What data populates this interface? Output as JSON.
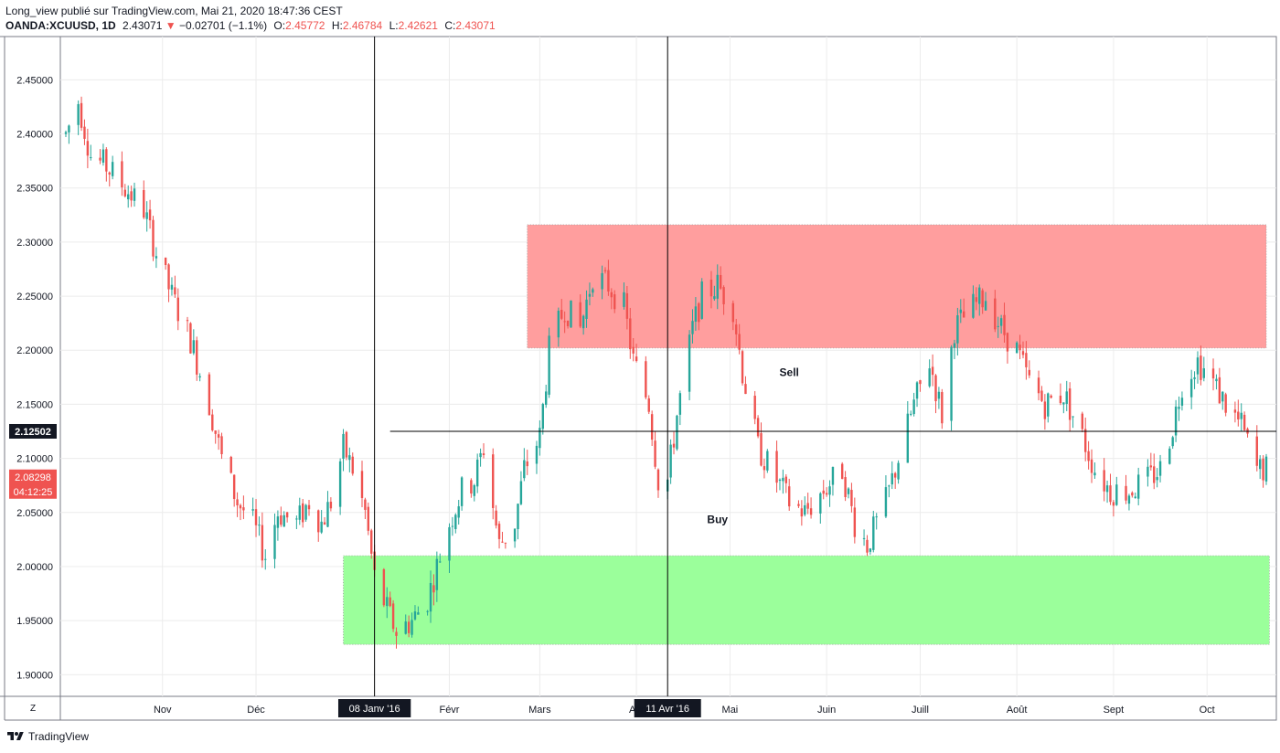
{
  "header": {
    "publisher_line": "Long_view publié sur TradingView.com, Mai 21, 2020 18:47:36 CEST",
    "symbol": "OANDA:XCUUSD, 1D",
    "last": "2.43071",
    "change_arrow": "▼",
    "change": "−0.02701 (−1.1%)",
    "o_label": "O:",
    "o_value": "2.45772",
    "h_label": "H:",
    "h_value": "2.46784",
    "l_label": "L:",
    "l_value": "2.42621",
    "c_label": "C:",
    "c_value": "2.43071"
  },
  "footer": {
    "brand": "TradingView"
  },
  "colors": {
    "up": "#26a69a",
    "down": "#ef5350",
    "sell_zone": "#ff9e9e",
    "buy_zone": "#9bff9b",
    "axis_text": "#131722"
  },
  "chart_data": {
    "type": "candlestick",
    "title": "",
    "xlabel": "",
    "ylabel": "",
    "ylim": [
      1.88,
      2.49
    ],
    "y_ticks": [
      "1.90000",
      "1.95000",
      "2.00000",
      "2.05000",
      "2.10000",
      "2.15000",
      "2.20000",
      "2.25000",
      "2.30000",
      "2.35000",
      "2.40000",
      "2.45000"
    ],
    "x_ticks": [
      "Nov",
      "Déc",
      "Févr",
      "Mars",
      "Avr",
      "Mai",
      "Juin",
      "Juill",
      "Août",
      "Sept",
      "Oct"
    ],
    "x_tick_dates": [
      "2015-11-01",
      "2015-12-01",
      "2016-02-01",
      "2016-03-01",
      "2016-04-01",
      "2016-05-01",
      "2016-06-01",
      "2016-07-01",
      "2016-08-01",
      "2016-09-01",
      "2016-10-01"
    ],
    "date_range": [
      "2015-10-01",
      "2016-10-20"
    ],
    "price_labels": [
      {
        "text": "2.12502",
        "value": 2.12502,
        "style": "dark"
      },
      {
        "text": "2.08298",
        "value": 2.08298,
        "style": "red"
      },
      {
        "text": "04:12:25",
        "style": "red"
      }
    ],
    "vertical_markers": [
      {
        "label": "08 Janv '16",
        "date": "2016-01-08"
      },
      {
        "label": "11 Avr '16",
        "date": "2016-04-11"
      }
    ],
    "horizontal_line": {
      "value": 2.125,
      "start_date": "2016-01-13"
    },
    "zones": [
      {
        "label": "Sell",
        "start": "2016-02-26",
        "end": "2016-10-20",
        "top": 2.316,
        "bottom": 2.202,
        "color": "#ff9e9e",
        "label_date": "2016-05-20",
        "label_value": 2.176
      },
      {
        "label": "Buy",
        "start": "2015-12-29",
        "end": "2016-10-21",
        "top": 2.01,
        "bottom": 1.928,
        "color": "#9bff9b",
        "label_date": "2016-04-27",
        "label_value": 2.04
      }
    ],
    "path": [
      [
        "2015-10-01",
        2.4
      ],
      [
        "2015-10-05",
        2.43
      ],
      [
        "2015-10-09",
        2.38
      ],
      [
        "2015-10-14",
        2.37
      ],
      [
        "2015-10-20",
        2.35
      ],
      [
        "2015-10-26",
        2.33
      ],
      [
        "2015-10-30",
        2.29
      ],
      [
        "2015-11-04",
        2.25
      ],
      [
        "2015-11-10",
        2.21
      ],
      [
        "2015-11-16",
        2.15
      ],
      [
        "2015-11-20",
        2.1
      ],
      [
        "2015-11-25",
        2.06
      ],
      [
        "2015-11-30",
        2.04
      ],
      [
        "2015-12-04",
        2.01
      ],
      [
        "2015-12-08",
        2.05
      ],
      [
        "2015-12-14",
        2.04
      ],
      [
        "2015-12-18",
        2.06
      ],
      [
        "2015-12-22",
        2.04
      ],
      [
        "2015-12-25",
        2.06
      ],
      [
        "2015-12-29",
        2.11
      ],
      [
        "2016-01-01",
        2.09
      ],
      [
        "2016-01-05",
        2.05
      ],
      [
        "2016-01-08",
        1.99
      ],
      [
        "2016-01-12",
        1.96
      ],
      [
        "2016-01-15",
        1.94
      ],
      [
        "2016-01-20",
        1.95
      ],
      [
        "2016-01-25",
        1.97
      ],
      [
        "2016-01-28",
        2.0
      ],
      [
        "2016-02-01",
        2.04
      ],
      [
        "2016-02-05",
        2.07
      ],
      [
        "2016-02-09",
        2.08
      ],
      [
        "2016-02-12",
        2.11
      ],
      [
        "2016-02-17",
        2.02
      ],
      [
        "2016-02-22",
        2.04
      ],
      [
        "2016-02-25",
        2.09
      ],
      [
        "2016-03-01",
        2.12
      ],
      [
        "2016-03-04",
        2.2
      ],
      [
        "2016-03-09",
        2.24
      ],
      [
        "2016-03-14",
        2.22
      ],
      [
        "2016-03-18",
        2.27
      ],
      [
        "2016-03-23",
        2.26
      ],
      [
        "2016-03-28",
        2.24
      ],
      [
        "2016-03-31",
        2.19
      ],
      [
        "2016-04-05",
        2.15
      ],
      [
        "2016-04-08",
        2.08
      ],
      [
        "2016-04-11",
        2.08
      ],
      [
        "2016-04-14",
        2.14
      ],
      [
        "2016-04-19",
        2.22
      ],
      [
        "2016-04-22",
        2.25
      ],
      [
        "2016-04-27",
        2.26
      ],
      [
        "2016-05-02",
        2.24
      ],
      [
        "2016-05-05",
        2.18
      ],
      [
        "2016-05-10",
        2.11
      ],
      [
        "2016-05-16",
        2.08
      ],
      [
        "2016-05-20",
        2.06
      ],
      [
        "2016-05-25",
        2.05
      ],
      [
        "2016-05-31",
        2.07
      ],
      [
        "2016-06-06",
        2.09
      ],
      [
        "2016-06-10",
        2.04
      ],
      [
        "2016-06-14",
        2.02
      ],
      [
        "2016-06-20",
        2.06
      ],
      [
        "2016-06-24",
        2.1
      ],
      [
        "2016-06-29",
        2.15
      ],
      [
        "2016-07-04",
        2.19
      ],
      [
        "2016-07-08",
        2.14
      ],
      [
        "2016-07-12",
        2.22
      ],
      [
        "2016-07-18",
        2.24
      ],
      [
        "2016-07-22",
        2.25
      ],
      [
        "2016-07-27",
        2.22
      ],
      [
        "2016-08-01",
        2.2
      ],
      [
        "2016-08-05",
        2.17
      ],
      [
        "2016-08-10",
        2.15
      ],
      [
        "2016-08-16",
        2.16
      ],
      [
        "2016-08-22",
        2.12
      ],
      [
        "2016-08-26",
        2.09
      ],
      [
        "2016-08-31",
        2.07
      ],
      [
        "2016-09-06",
        2.07
      ],
      [
        "2016-09-12",
        2.08
      ],
      [
        "2016-09-16",
        2.09
      ],
      [
        "2016-09-20",
        2.13
      ],
      [
        "2016-09-23",
        2.17
      ],
      [
        "2016-09-28",
        2.19
      ],
      [
        "2016-10-03",
        2.17
      ],
      [
        "2016-10-07",
        2.15
      ],
      [
        "2016-10-12",
        2.13
      ],
      [
        "2016-10-17",
        2.09
      ],
      [
        "2016-10-20",
        2.09
      ]
    ]
  }
}
